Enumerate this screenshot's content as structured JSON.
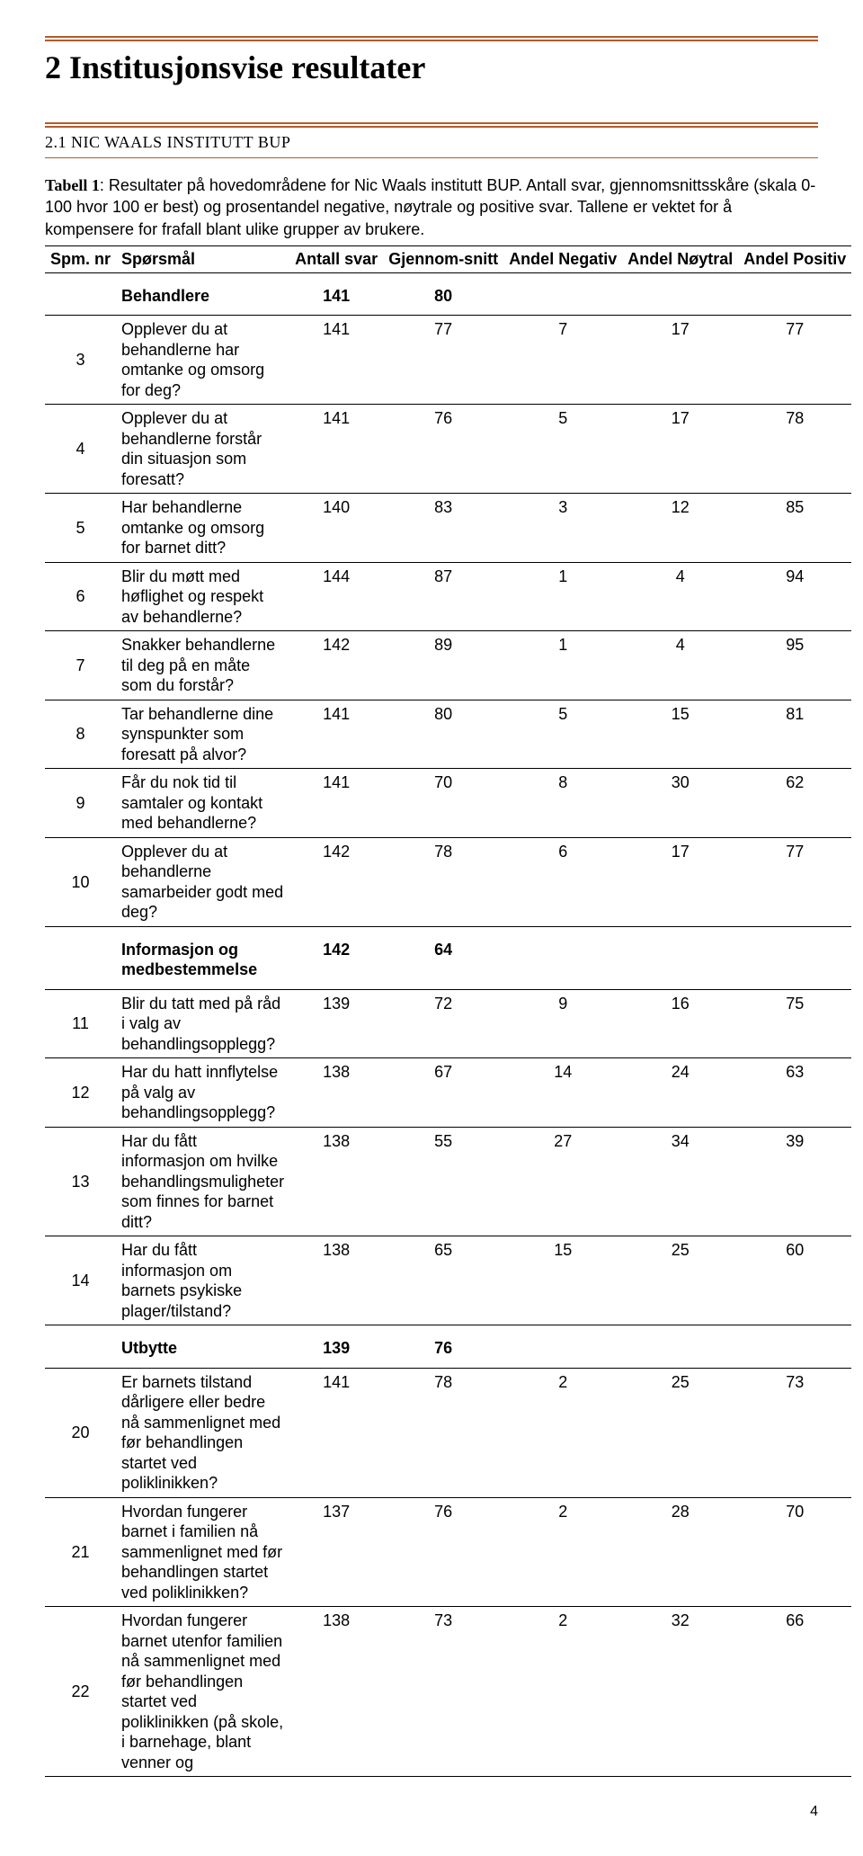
{
  "page": {
    "title": "2 Institusjonsvise resultater",
    "subtitle": "2.1 NIC WAALS INSTITUTT BUP",
    "intro_label": "Tabell 1",
    "intro_text": ": Resultater på hovedområdene for Nic Waals institutt BUP. Antall svar, gjennomsnittsskåre (skala 0-100 hvor 100 er best) og prosentandel negative, nøytrale og positive svar. Tallene er vektet for å kompensere for frafall blant ulike grupper av brukere.",
    "page_number": "4"
  },
  "headers": {
    "c0": "Spm. nr",
    "c1": "Spørsmål",
    "c2": "Antall svar",
    "c3": "Gjennom-snitt",
    "c4": "Andel Negativ",
    "c5": "Andel Nøytral",
    "c6": "Andel Positiv"
  },
  "sections": [
    {
      "title": "Behandlere",
      "antall": "141",
      "snitt": "80",
      "rows": [
        {
          "nr": "3",
          "q": "Opplever du at behandlerne har omtanke og omsorg for deg?",
          "a": "141",
          "b": "77",
          "c": "7",
          "d": "17",
          "e": "77"
        },
        {
          "nr": "4",
          "q": "Opplever du at behandlerne forstår din situasjon som foresatt?",
          "a": "141",
          "b": "76",
          "c": "5",
          "d": "17",
          "e": "78"
        },
        {
          "nr": "5",
          "q": "Har behandlerne omtanke og omsorg for barnet ditt?",
          "a": "140",
          "b": "83",
          "c": "3",
          "d": "12",
          "e": "85"
        },
        {
          "nr": "6",
          "q": "Blir du møtt med høflighet og respekt av behandlerne?",
          "a": "144",
          "b": "87",
          "c": "1",
          "d": "4",
          "e": "94"
        },
        {
          "nr": "7",
          "q": "Snakker behandlerne til deg på en måte som du forstår?",
          "a": "142",
          "b": "89",
          "c": "1",
          "d": "4",
          "e": "95"
        },
        {
          "nr": "8",
          "q": "Tar behandlerne dine synspunkter som foresatt på alvor?",
          "a": "141",
          "b": "80",
          "c": "5",
          "d": "15",
          "e": "81"
        },
        {
          "nr": "9",
          "q": "Får du nok tid til samtaler og kontakt med behandlerne?",
          "a": "141",
          "b": "70",
          "c": "8",
          "d": "30",
          "e": "62"
        },
        {
          "nr": "10",
          "q": "Opplever du at behandlerne samarbeider godt med deg?",
          "a": "142",
          "b": "78",
          "c": "6",
          "d": "17",
          "e": "77"
        }
      ]
    },
    {
      "title": "Informasjon og medbestemmelse",
      "antall": "142",
      "snitt": "64",
      "rows": [
        {
          "nr": "11",
          "q": "Blir du tatt med på råd i valg av behandlingsopplegg?",
          "a": "139",
          "b": "72",
          "c": "9",
          "d": "16",
          "e": "75"
        },
        {
          "nr": "12",
          "q": "Har du hatt innflytelse på valg av behandlingsopplegg?",
          "a": "138",
          "b": "67",
          "c": "14",
          "d": "24",
          "e": "63"
        },
        {
          "nr": "13",
          "q": "Har du fått informasjon om hvilke behandlingsmuligheter som finnes for barnet ditt?",
          "a": "138",
          "b": "55",
          "c": "27",
          "d": "34",
          "e": "39"
        },
        {
          "nr": "14",
          "q": "Har du fått informasjon om barnets psykiske plager/tilstand?",
          "a": "138",
          "b": "65",
          "c": "15",
          "d": "25",
          "e": "60"
        }
      ]
    },
    {
      "title": "Utbytte",
      "antall": "139",
      "snitt": "76",
      "rows": [
        {
          "nr": "20",
          "q": "Er barnets tilstand dårligere eller bedre nå sammenlignet med før behandlingen startet ved poliklinikken?",
          "a": "141",
          "b": "78",
          "c": "2",
          "d": "25",
          "e": "73"
        },
        {
          "nr": "21",
          "q": "Hvordan fungerer barnet i familien nå sammenlignet med før behandlingen startet ved poliklinikken?",
          "a": "137",
          "b": "76",
          "c": "2",
          "d": "28",
          "e": "70"
        },
        {
          "nr": "22",
          "q": "Hvordan fungerer barnet utenfor familien nå sammenlignet med før behandlingen startet ved poliklinikken (på skole, i barnehage, blant venner og",
          "a": "138",
          "b": "73",
          "c": "2",
          "d": "32",
          "e": "66"
        }
      ]
    }
  ]
}
